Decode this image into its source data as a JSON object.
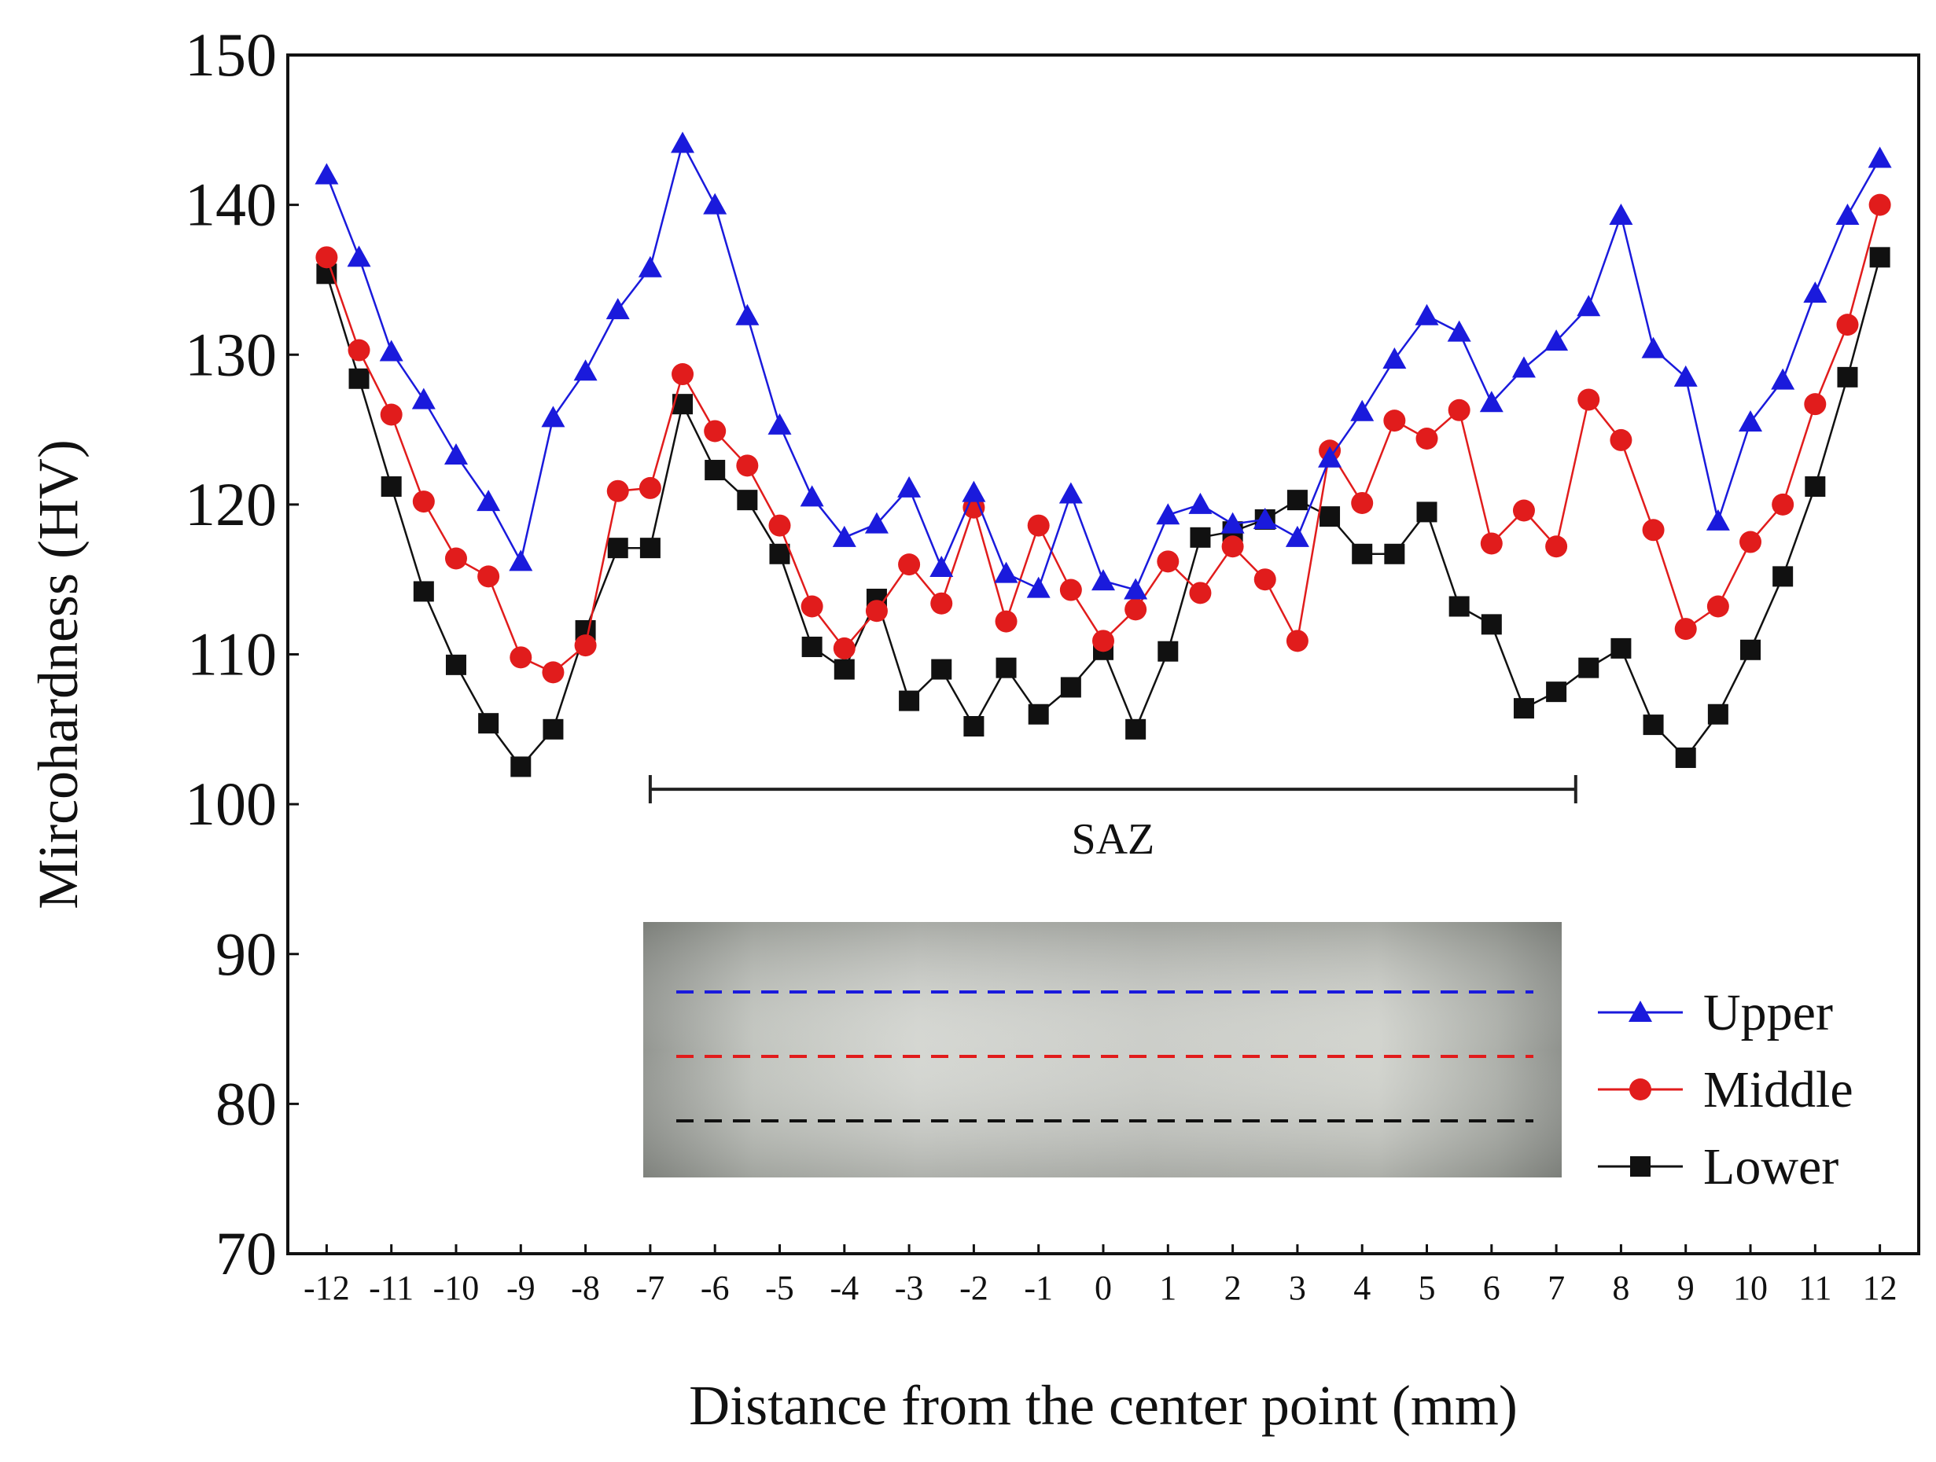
{
  "chart_data": {
    "type": "line",
    "title": "",
    "xlabel": "Distance from the center point (mm)",
    "ylabel": "Mircohardness (HV)",
    "xlim": [
      -12.6,
      12.6
    ],
    "ylim": [
      70,
      150
    ],
    "y_ticks": [
      70,
      80,
      90,
      100,
      110,
      120,
      130,
      140,
      150
    ],
    "x_ticks": [
      -12,
      -11,
      -10,
      -9,
      -8,
      -7,
      -6,
      -5,
      -4,
      -3,
      -2,
      -1,
      0,
      1,
      2,
      3,
      4,
      5,
      6,
      7,
      8,
      9,
      10,
      11,
      12
    ],
    "x_tick_labels": [
      "-12",
      "-11",
      "-10",
      "-9",
      "-8",
      "-7",
      "-6",
      "-5",
      "-4",
      "-3",
      "-2",
      "-1",
      "0",
      "1",
      "2",
      "3",
      "4",
      "5",
      "6",
      "7",
      "8",
      "9",
      "10",
      "11",
      "12"
    ],
    "x": [
      -12,
      -11.5,
      -11,
      -10.5,
      -10,
      -9.5,
      -9,
      -8.5,
      -8,
      -7.5,
      -7,
      -6.5,
      -6,
      -5.5,
      -5,
      -4.5,
      -4,
      -3.5,
      -3,
      -2.5,
      -2,
      -1.5,
      -1,
      -0.5,
      0,
      0.5,
      1,
      1.5,
      2,
      2.5,
      3,
      3.5,
      4,
      4.5,
      5,
      5.5,
      6,
      6.5,
      7,
      7.5,
      8,
      8.5,
      9,
      9.5,
      10,
      10.5,
      11,
      11.5,
      12
    ],
    "series": [
      {
        "name": "Upper",
        "color": "#1a1adc",
        "marker": "triangle",
        "values": [
          142,
          136.5,
          130.2,
          127,
          123.3,
          120.2,
          116.2,
          125.8,
          128.9,
          133,
          135.8,
          144.1,
          140,
          132.6,
          125.3,
          120.5,
          117.8,
          118.7,
          121.1,
          115.8,
          120.8,
          115.4,
          114.4,
          120.7,
          114.9,
          114.3,
          119.3,
          120,
          118.7,
          119,
          117.8,
          123.1,
          126.2,
          129.7,
          132.6,
          131.5,
          126.8,
          129.1,
          130.9,
          133.2,
          139.3,
          130.4,
          128.5,
          118.9,
          125.5,
          128.3,
          134.1,
          139.3,
          143.1
        ]
      },
      {
        "name": "Middle",
        "color": "#e11c1c",
        "marker": "circle",
        "values": [
          136.5,
          130.3,
          126,
          120.2,
          116.4,
          115.2,
          109.8,
          108.8,
          110.6,
          120.9,
          121.1,
          128.7,
          124.9,
          122.6,
          118.6,
          113.2,
          110.4,
          112.9,
          116,
          113.4,
          119.8,
          112.2,
          118.6,
          114.3,
          110.9,
          113,
          116.2,
          114.1,
          117.2,
          115,
          110.9,
          123.6,
          120.1,
          125.6,
          124.4,
          126.3,
          117.4,
          119.6,
          117.2,
          127,
          124.3,
          118.3,
          111.7,
          113.2,
          117.5,
          120,
          126.7,
          132,
          140
        ]
      },
      {
        "name": "Lower",
        "color": "#111111",
        "marker": "square",
        "values": [
          135.4,
          128.4,
          121.2,
          114.2,
          109.3,
          105.4,
          102.5,
          105,
          111.6,
          117.1,
          117.1,
          126.7,
          122.3,
          120.3,
          116.7,
          110.5,
          109,
          113.7,
          106.9,
          109,
          105.2,
          109.1,
          106,
          107.8,
          110.3,
          105,
          110.2,
          117.8,
          118.2,
          119,
          120.3,
          119.2,
          116.7,
          116.7,
          119.5,
          113.2,
          112,
          106.4,
          107.5,
          109.1,
          110.4,
          105.3,
          103.1,
          106,
          110.3,
          115.2,
          121.2,
          128.5,
          136.5
        ]
      }
    ],
    "legend": [
      "Upper",
      "Middle",
      "Lower"
    ],
    "legend_placement": "bottom-right",
    "annotations": [
      {
        "text": "SAZ",
        "x_range": [
          -7,
          7.3
        ],
        "y": 101
      }
    ],
    "inset": {
      "description": "cross-section micrograph with Upper, Middle and Lower measurement lines",
      "line_colors": [
        "#1a1adc",
        "#e11c1c",
        "#111111"
      ]
    },
    "grid": false
  }
}
